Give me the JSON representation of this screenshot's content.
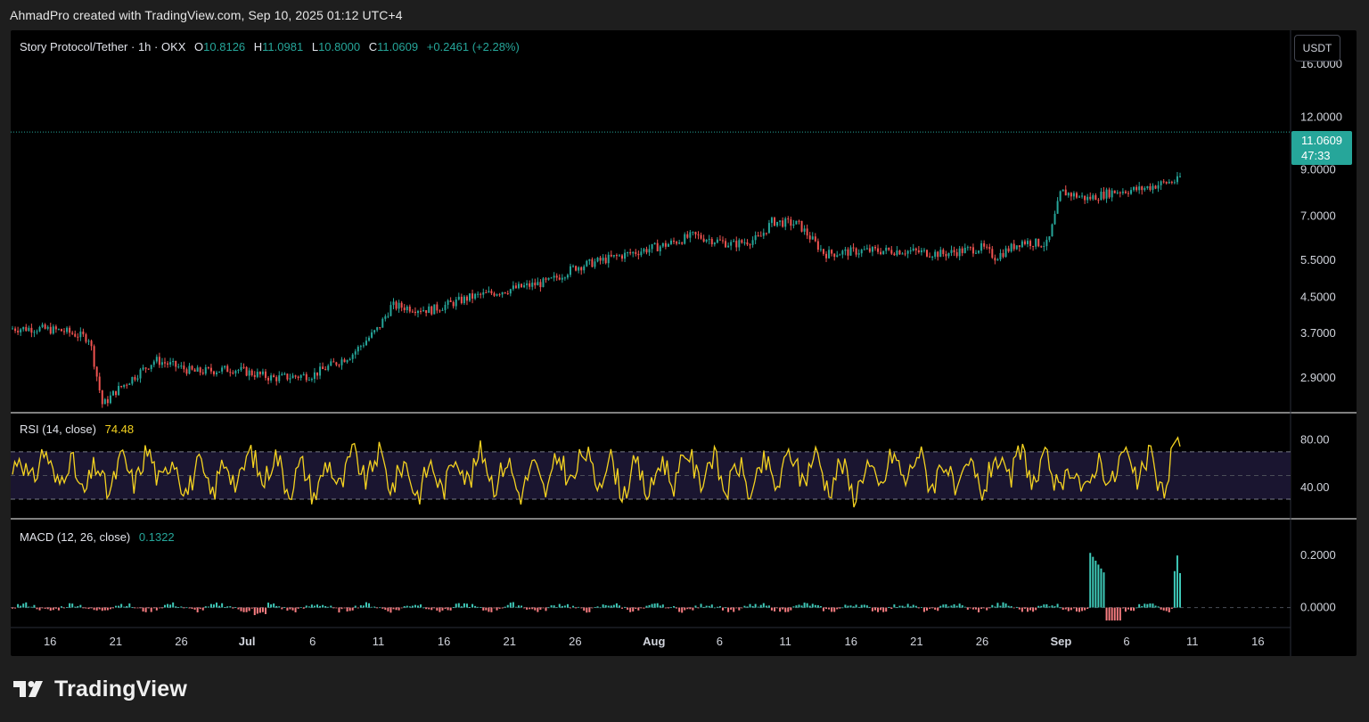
{
  "header": {
    "credit": "AhmadPro created with TradingView.com, Sep 10, 2025 01:12 UTC+4"
  },
  "legend": {
    "symbol": "Story Protocol/Tether · 1h · OKX",
    "o_label": "O",
    "o_value": "10.8126",
    "h_label": "H",
    "h_value": "11.0981",
    "l_label": "L",
    "l_value": "10.8000",
    "c_label": "C",
    "c_value": "11.0609",
    "change": "+0.2461 (+2.28%)"
  },
  "price_axis": {
    "currency": "USDT",
    "last_price": "11.0609",
    "countdown": "47:33"
  },
  "rsi": {
    "label": "RSI (14, close)",
    "value": "74.48"
  },
  "macd": {
    "label": "MACD (12, 26, close)",
    "value": "0.1322"
  },
  "brand": {
    "name": "TradingView"
  },
  "colors": {
    "up": "#26a69a",
    "down": "#ef5350",
    "rsi_line": "#f5d320",
    "rsi_band": "#1a1530",
    "last_price_bg": "#26a69a",
    "background": "#000000"
  },
  "chart_data": [
    {
      "type": "candlestick",
      "title": "Story Protocol/Tether · 1h · OKX",
      "scale": "log",
      "y_ticks": [
        "16.0000",
        "12.0000",
        "9.0000",
        "7.0000",
        "5.5000",
        "4.5000",
        "3.7000",
        "2.9000"
      ],
      "x_ticks": [
        "16",
        "21",
        "26",
        "Jul",
        "6",
        "11",
        "16",
        "21",
        "26",
        "Aug",
        "6",
        "11",
        "16",
        "21",
        "26",
        "Sep",
        "6",
        "11",
        "16"
      ],
      "x": [
        "Jun 15",
        "Jun 17",
        "Jun 19",
        "Jun 20",
        "Jun 21",
        "Jun 24",
        "Jun 27",
        "Jun 30",
        "Jul 3",
        "Jul 6",
        "Jul 9",
        "Jul 11",
        "Jul 12",
        "Jul 15",
        "Jul 18",
        "Jul 21",
        "Jul 24",
        "Jul 26",
        "Jul 29",
        "Aug 1",
        "Aug 3",
        "Aug 6",
        "Aug 8",
        "Aug 9",
        "Aug 11",
        "Aug 13",
        "Aug 16",
        "Aug 19",
        "Aug 22",
        "Aug 25",
        "Aug 26",
        "Aug 28",
        "Aug 30",
        "Aug 31",
        "Sep 2",
        "Sep 4",
        "Sep 6",
        "Sep 8",
        "Sep 9",
        "Sep 10"
      ],
      "close": [
        3.8,
        3.75,
        3.6,
        2.5,
        2.7,
        3.2,
        3.0,
        3.05,
        2.9,
        2.95,
        3.3,
        3.8,
        4.3,
        4.2,
        4.5,
        4.7,
        4.9,
        5.3,
        5.6,
        6.0,
        6.3,
        6.0,
        6.2,
        6.8,
        6.7,
        5.7,
        5.8,
        5.8,
        5.7,
        5.9,
        5.6,
        6.1,
        6.0,
        8.0,
        7.7,
        8.0,
        8.1,
        8.4,
        8.5,
        11.06
      ]
    },
    {
      "type": "line",
      "name": "RSI (14, close)",
      "y_ticks": [
        "80.00",
        "40.00"
      ],
      "upper_band": 70,
      "lower_band": 30,
      "ylim": [
        15,
        100
      ],
      "last_value": 74.48
    },
    {
      "type": "histogram",
      "name": "MACD (12, 26, close)",
      "y_ticks": [
        "0.2000",
        "0.0000"
      ],
      "ylim": [
        -0.07,
        0.3
      ],
      "last_value": 0.1322
    }
  ]
}
